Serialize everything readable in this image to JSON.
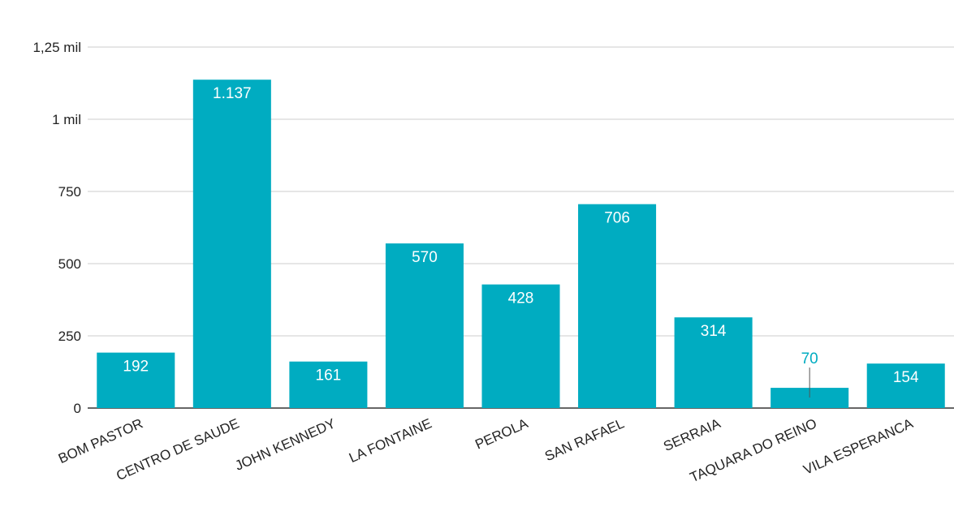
{
  "chart_data": {
    "type": "bar",
    "title": "",
    "xlabel": "",
    "ylabel": "",
    "categories": [
      "BOM PASTOR",
      "CENTRO DE SAUDE",
      "JOHN KENNEDY",
      "LA FONTAINE",
      "PEROLA",
      "SAN RAFAEL",
      "SERRAIA",
      "TAQUARA DO REINO",
      "VILA ESPERANCA"
    ],
    "values": [
      192,
      1137,
      161,
      570,
      428,
      706,
      314,
      70,
      154
    ],
    "value_labels": [
      "192",
      "1.137",
      "161",
      "570",
      "428",
      "706",
      "314",
      "70",
      "154"
    ],
    "ylim": [
      0,
      1250
    ],
    "y_ticks": [
      0,
      250,
      500,
      750,
      1000,
      1250
    ],
    "y_tick_labels": [
      "0",
      "250",
      "500",
      "750",
      "1 mil",
      "1,25 mil"
    ],
    "grid": true,
    "legend": "none",
    "bar_color": "#00acc1",
    "gridline_color": "#cccccc",
    "label_inside_color": "#ffffff"
  }
}
